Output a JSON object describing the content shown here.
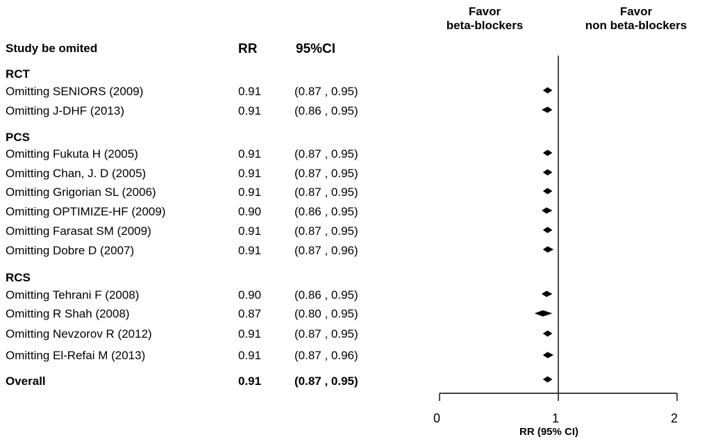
{
  "header": {
    "study_col": "Study be omited",
    "rr_col": "RR",
    "ci_col": "95%CI",
    "favor_left_1": "Favor",
    "favor_left_2": "beta-blockers",
    "favor_right_1": "Favor",
    "favor_right_2": "non beta-blockers"
  },
  "chart_data": {
    "type": "forest",
    "xlabel": "RR  (95% CI)",
    "xlim": [
      0,
      2
    ],
    "xticks": [
      "0",
      "1",
      "2"
    ],
    "reference_line": 1,
    "groups": [
      {
        "label": "RCT",
        "rows": [
          {
            "study": "Omitting SENIORS (2009)",
            "rr": 0.91,
            "rr_text": "0.91",
            "lo": 0.87,
            "hi": 0.95,
            "ci_text": "(0.87 , 0.95)"
          },
          {
            "study": "Omitting J-DHF (2013)",
            "rr": 0.91,
            "rr_text": "0.91",
            "lo": 0.86,
            "hi": 0.95,
            "ci_text": "(0.86 , 0.95)"
          }
        ]
      },
      {
        "label": "PCS",
        "rows": [
          {
            "study": "Omitting Fukuta H (2005)",
            "rr": 0.91,
            "rr_text": "0.91",
            "lo": 0.87,
            "hi": 0.95,
            "ci_text": "(0.87 , 0.95)"
          },
          {
            "study": "Omitting Chan, J. D (2005)",
            "rr": 0.91,
            "rr_text": "0.91",
            "lo": 0.87,
            "hi": 0.95,
            "ci_text": "(0.87 , 0.95)"
          },
          {
            "study": "Omitting Grigorian SL (2006)",
            "rr": 0.91,
            "rr_text": "0.91",
            "lo": 0.87,
            "hi": 0.95,
            "ci_text": "(0.87 , 0.95)"
          },
          {
            "study": "Omitting OPTIMIZE-HF (2009)",
            "rr": 0.9,
            "rr_text": "0.90",
            "lo": 0.86,
            "hi": 0.95,
            "ci_text": "(0.86 , 0.95)"
          },
          {
            "study": "Omitting Farasat SM (2009)",
            "rr": 0.91,
            "rr_text": "0.91",
            "lo": 0.87,
            "hi": 0.95,
            "ci_text": "(0.87 , 0.95)"
          },
          {
            "study": "Omitting Dobre D (2007)",
            "rr": 0.91,
            "rr_text": "0.91",
            "lo": 0.87,
            "hi": 0.96,
            "ci_text": "(0.87 , 0.96)"
          }
        ]
      },
      {
        "label": "RCS",
        "rows": [
          {
            "study": "Omitting Tehrani F (2008)",
            "rr": 0.9,
            "rr_text": "0.90",
            "lo": 0.86,
            "hi": 0.95,
            "ci_text": "(0.86 , 0.95)"
          },
          {
            "study": "Omitting R Shah (2008)",
            "rr": 0.87,
            "rr_text": "0.87",
            "lo": 0.8,
            "hi": 0.95,
            "ci_text": "(0.80 , 0.95)"
          },
          {
            "study": "Omitting Nevzorov R (2012)",
            "rr": 0.91,
            "rr_text": "0.91",
            "lo": 0.87,
            "hi": 0.95,
            "ci_text": "(0.87 , 0.95)"
          },
          {
            "study": "Omitting El-Refai M (2013)",
            "rr": 0.91,
            "rr_text": "0.91",
            "lo": 0.87,
            "hi": 0.96,
            "ci_text": "(0.87 , 0.96)"
          }
        ]
      }
    ],
    "overall": {
      "study": "Overall",
      "rr": 0.91,
      "rr_text": "0.91",
      "lo": 0.87,
      "hi": 0.95,
      "ci_text": "(0.87 , 0.95)"
    }
  }
}
